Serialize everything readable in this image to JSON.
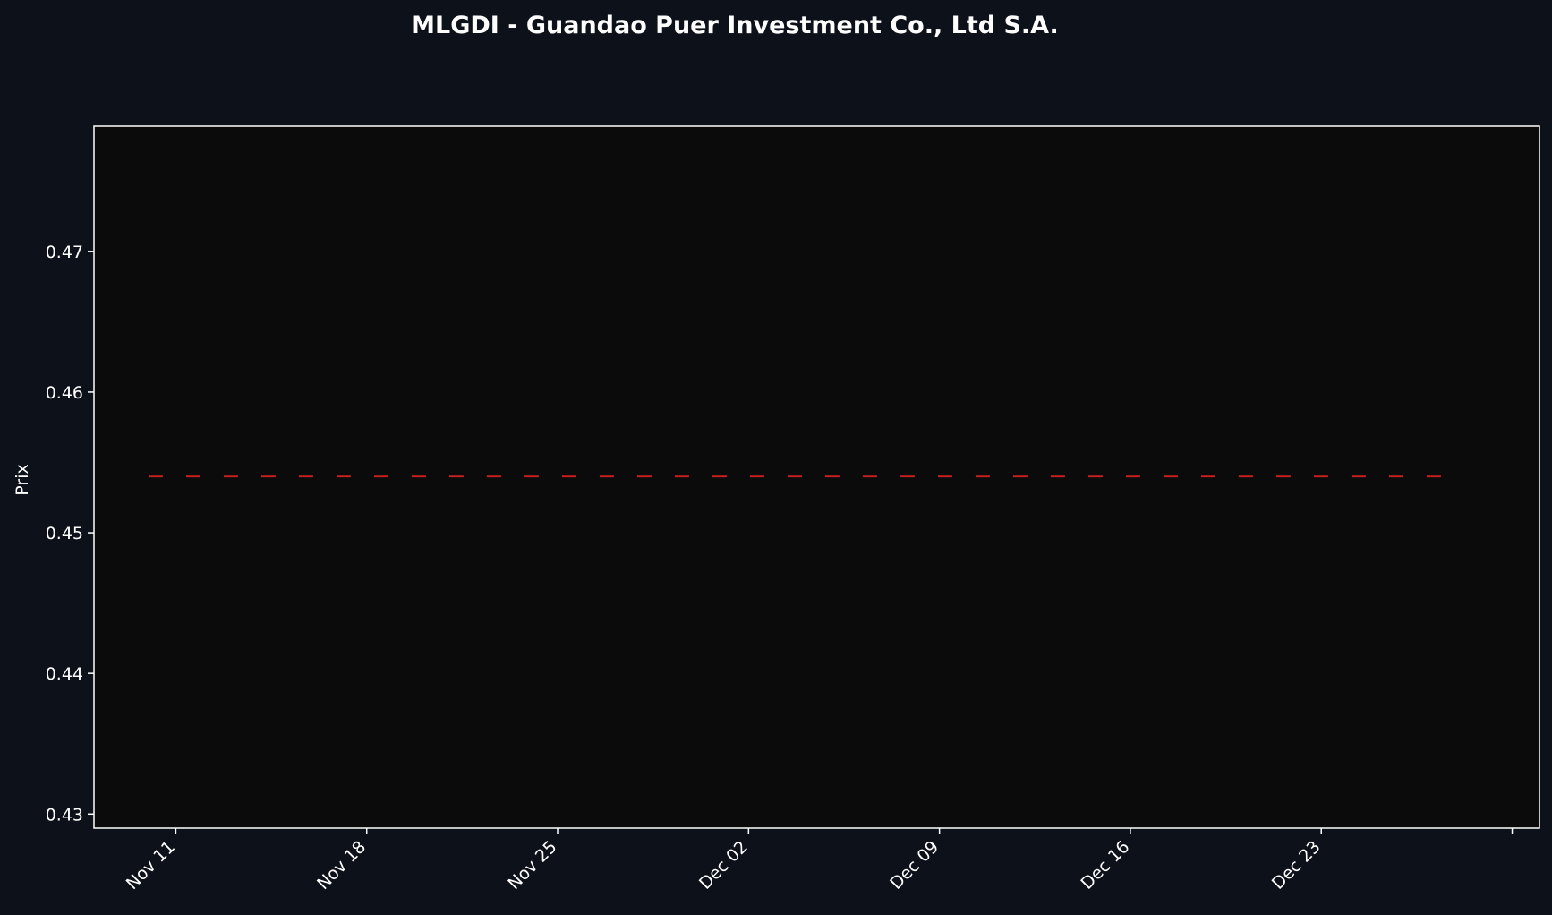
{
  "chart_data": {
    "type": "line",
    "title": "MLGDI - Guandao Puer Investment Co., Ltd S.A.",
    "xlabel": "",
    "ylabel": "Prix",
    "x_ticks": [
      "Nov 11",
      "Nov 18",
      "Nov 25",
      "Dec 02",
      "Dec 09",
      "Dec 16",
      "Dec 23",
      ""
    ],
    "y_ticks": [
      "0.43",
      "0.44",
      "0.45",
      "0.46",
      "0.47"
    ],
    "y_tick_values": [
      0.43,
      0.44,
      0.45,
      0.46,
      0.47
    ],
    "ylim": [
      0.429,
      0.4789
    ],
    "xlim": [
      "2024-11-08",
      "2024-12-31"
    ],
    "grid": false,
    "series": [
      {
        "line_style": "dashed",
        "color": "#cc1f1f",
        "x": [
          "2024-11-10",
          "2024-12-28"
        ],
        "y": [
          0.454,
          0.454
        ]
      }
    ],
    "colors": {
      "page_background": "#0d111a",
      "plot_background": "#0b0b0b",
      "axes": "#ffffff",
      "text": "#ffffff"
    }
  }
}
